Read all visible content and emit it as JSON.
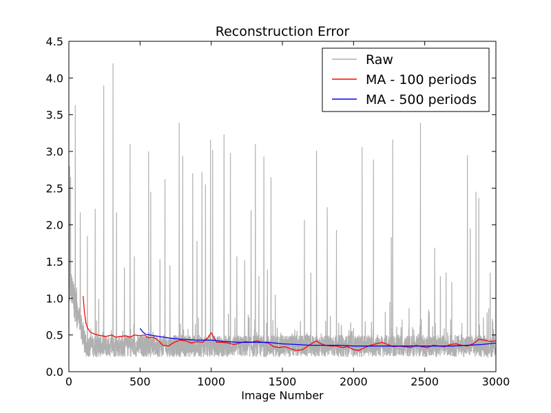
{
  "chart_data": {
    "type": "line",
    "title": "Reconstruction Error",
    "xlabel": "Image Number",
    "ylabel": "",
    "xlim": [
      0,
      3000
    ],
    "ylim": [
      0,
      4.5
    ],
    "xticks": [
      0,
      500,
      1000,
      1500,
      2000,
      2500,
      3000
    ],
    "xtick_labels": [
      "0",
      "500",
      "1000",
      "1500",
      "2000",
      "2500",
      "3000"
    ],
    "yticks": [
      0,
      0.5,
      1.0,
      1.5,
      2.0,
      2.5,
      3.0,
      3.5,
      4.0,
      4.5
    ],
    "ytick_labels": [
      "0.0",
      "0.5",
      "1.0",
      "1.5",
      "2.0",
      "2.5",
      "3.0",
      "3.5",
      "4.0",
      "4.5"
    ],
    "grid": false,
    "legend_position": "top-right",
    "series": [
      {
        "name": "Raw",
        "color": "#b0b0b0",
        "baseline_range": [
          0.2,
          0.5
        ],
        "spikes": [
          {
            "x": 5,
            "y": 2.8
          },
          {
            "x": 12,
            "y": 2.65
          },
          {
            "x": 20,
            "y": 1.2
          },
          {
            "x": 45,
            "y": 3.63
          },
          {
            "x": 80,
            "y": 2.17
          },
          {
            "x": 130,
            "y": 1.85
          },
          {
            "x": 185,
            "y": 2.22
          },
          {
            "x": 210,
            "y": 0.99
          },
          {
            "x": 245,
            "y": 3.9
          },
          {
            "x": 310,
            "y": 4.2
          },
          {
            "x": 335,
            "y": 2.17
          },
          {
            "x": 390,
            "y": 1.42
          },
          {
            "x": 430,
            "y": 3.1
          },
          {
            "x": 460,
            "y": 1.57
          },
          {
            "x": 560,
            "y": 3.0
          },
          {
            "x": 575,
            "y": 2.45
          },
          {
            "x": 640,
            "y": 1.53
          },
          {
            "x": 675,
            "y": 2.62
          },
          {
            "x": 710,
            "y": 1.45
          },
          {
            "x": 775,
            "y": 3.39
          },
          {
            "x": 800,
            "y": 2.94
          },
          {
            "x": 870,
            "y": 2.7
          },
          {
            "x": 900,
            "y": 1.78
          },
          {
            "x": 935,
            "y": 2.72
          },
          {
            "x": 960,
            "y": 2.55
          },
          {
            "x": 995,
            "y": 3.16
          },
          {
            "x": 1010,
            "y": 3.02
          },
          {
            "x": 1090,
            "y": 3.23
          },
          {
            "x": 1135,
            "y": 2.98
          },
          {
            "x": 1180,
            "y": 1.57
          },
          {
            "x": 1235,
            "y": 1.52
          },
          {
            "x": 1280,
            "y": 2.2
          },
          {
            "x": 1310,
            "y": 3.1
          },
          {
            "x": 1335,
            "y": 1.3
          },
          {
            "x": 1370,
            "y": 2.93
          },
          {
            "x": 1395,
            "y": 1.39
          },
          {
            "x": 1420,
            "y": 2.65
          },
          {
            "x": 1450,
            "y": 1.05
          },
          {
            "x": 1655,
            "y": 2.07
          },
          {
            "x": 1700,
            "y": 1.35
          },
          {
            "x": 1740,
            "y": 3.01
          },
          {
            "x": 1815,
            "y": 2.24
          },
          {
            "x": 1880,
            "y": 1.93
          },
          {
            "x": 2060,
            "y": 3.06
          },
          {
            "x": 2140,
            "y": 2.89
          },
          {
            "x": 2255,
            "y": 0.95
          },
          {
            "x": 2265,
            "y": 1.83
          },
          {
            "x": 2275,
            "y": 3.16
          },
          {
            "x": 2470,
            "y": 3.39
          },
          {
            "x": 2570,
            "y": 1.69
          },
          {
            "x": 2610,
            "y": 1.3
          },
          {
            "x": 2650,
            "y": 1.35
          },
          {
            "x": 2690,
            "y": 1.22
          },
          {
            "x": 2800,
            "y": 2.95
          },
          {
            "x": 2820,
            "y": 1.95
          },
          {
            "x": 2860,
            "y": 2.45
          },
          {
            "x": 2880,
            "y": 2.37
          },
          {
            "x": 2960,
            "y": 1.35
          },
          {
            "x": 2975,
            "y": 0.72
          }
        ]
      },
      {
        "name": "MA - 100 periods",
        "color": "#ff0000",
        "x": [
          100,
          110,
          120,
          130,
          150,
          170,
          200,
          230,
          260,
          300,
          330,
          360,
          400,
          430,
          460,
          500,
          530,
          560,
          590,
          620,
          660,
          700,
          740,
          780,
          820,
          860,
          900,
          940,
          980,
          1000,
          1020,
          1040,
          1080,
          1120,
          1160,
          1200,
          1240,
          1280,
          1320,
          1360,
          1400,
          1440,
          1480,
          1520,
          1560,
          1600,
          1640,
          1680,
          1720,
          1740,
          1760,
          1800,
          1840,
          1880,
          1920,
          1960,
          2000,
          2040,
          2080,
          2120,
          2160,
          2200,
          2240,
          2280,
          2320,
          2360,
          2400,
          2440,
          2480,
          2520,
          2560,
          2600,
          2640,
          2680,
          2720,
          2760,
          2800,
          2840,
          2880,
          2920,
          2960,
          3000
        ],
        "y": [
          1.03,
          0.8,
          0.66,
          0.6,
          0.54,
          0.52,
          0.5,
          0.49,
          0.48,
          0.5,
          0.47,
          0.48,
          0.49,
          0.47,
          0.5,
          0.49,
          0.5,
          0.46,
          0.47,
          0.44,
          0.36,
          0.35,
          0.4,
          0.43,
          0.42,
          0.39,
          0.41,
          0.4,
          0.47,
          0.53,
          0.46,
          0.4,
          0.4,
          0.39,
          0.37,
          0.39,
          0.41,
          0.4,
          0.42,
          0.4,
          0.39,
          0.34,
          0.33,
          0.34,
          0.31,
          0.29,
          0.3,
          0.35,
          0.4,
          0.42,
          0.39,
          0.36,
          0.35,
          0.35,
          0.33,
          0.34,
          0.3,
          0.29,
          0.33,
          0.36,
          0.38,
          0.4,
          0.37,
          0.34,
          0.35,
          0.34,
          0.33,
          0.36,
          0.34,
          0.33,
          0.36,
          0.35,
          0.34,
          0.37,
          0.38,
          0.36,
          0.35,
          0.38,
          0.44,
          0.43,
          0.41,
          0.42
        ]
      },
      {
        "name": "MA - 500 periods",
        "color": "#0000ff",
        "x": [
          500,
          520,
          540,
          600,
          700,
          800,
          900,
          1000,
          1100,
          1200,
          1300,
          1400,
          1500,
          1600,
          1700,
          1800,
          1900,
          2000,
          2100,
          2200,
          2300,
          2400,
          2500,
          2600,
          2700,
          2800,
          2900,
          3000
        ],
        "y": [
          0.59,
          0.54,
          0.51,
          0.49,
          0.46,
          0.44,
          0.43,
          0.43,
          0.41,
          0.4,
          0.4,
          0.4,
          0.38,
          0.37,
          0.36,
          0.36,
          0.36,
          0.35,
          0.35,
          0.35,
          0.35,
          0.35,
          0.35,
          0.35,
          0.35,
          0.36,
          0.37,
          0.39
        ]
      }
    ]
  }
}
